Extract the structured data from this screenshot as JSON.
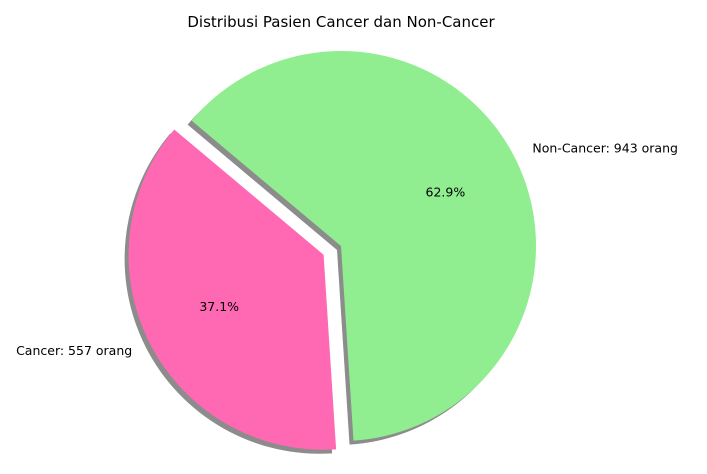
{
  "chart_data": {
    "type": "pie",
    "title": "Distribusi Pasien Cancer dan Non-Cancer",
    "slices": [
      {
        "label": "Cancer: 557 orang",
        "value": 557,
        "percent_label": "37.1%",
        "color": "#ff69b4",
        "exploded": true
      },
      {
        "label": "Non-Cancer: 943 orang",
        "value": 943,
        "percent_label": "62.9%",
        "color": "#90ee90",
        "exploded": false
      }
    ],
    "shadow": true,
    "legend": "none"
  }
}
